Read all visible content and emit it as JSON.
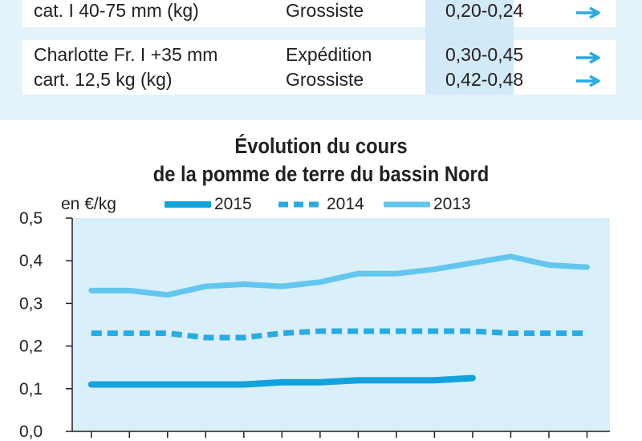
{
  "price_table": {
    "rows": [
      {
        "product": "cat. I 40-75 mm (kg)",
        "stage": "Grossiste",
        "price": "0,20-0,24",
        "trend_icon": "arrow-right-icon"
      },
      {
        "product": "Charlotte Fr. I +35 mm",
        "stage": "Expédition",
        "price": "0,30-0,45",
        "trend_icon": "arrow-right-icon"
      },
      {
        "product": "cart. 12,5 kg (kg)",
        "stage": "Grossiste",
        "price": "0,42-0,48",
        "trend_icon": "arrow-right-icon"
      }
    ],
    "arrow_color": "#29abe2"
  },
  "chart_data": {
    "type": "line",
    "title": "Évolution du cours",
    "subtitle": "de la pomme de terre du bassin Nord",
    "ylabel": "en €/kg",
    "xlabel": "",
    "ylim": [
      0,
      0.5
    ],
    "yticks": [
      "0,0",
      "0,1",
      "0,2",
      "0,3",
      "0,4",
      "0,5"
    ],
    "x": [
      1,
      2,
      3,
      4,
      5,
      6,
      7,
      8,
      9,
      10,
      11,
      12,
      13,
      14
    ],
    "xlim": [
      0.5,
      14.6
    ],
    "legend_placement": "top",
    "series": [
      {
        "name": "2015",
        "style": "solid-thick",
        "color": "#12a3dd",
        "values": [
          0.11,
          0.11,
          0.11,
          0.11,
          0.11,
          0.115,
          0.115,
          0.12,
          0.12,
          0.12,
          0.125,
          null,
          null,
          null
        ]
      },
      {
        "name": "2014",
        "style": "dashed",
        "color": "#29abe2",
        "values": [
          0.23,
          0.23,
          0.23,
          0.22,
          0.22,
          0.23,
          0.235,
          0.235,
          0.235,
          0.235,
          0.235,
          0.23,
          0.23,
          0.23
        ]
      },
      {
        "name": "2013",
        "style": "solid",
        "color": "#63c6ee",
        "values": [
          0.33,
          0.33,
          0.32,
          0.34,
          0.345,
          0.34,
          0.35,
          0.37,
          0.37,
          0.38,
          0.395,
          0.41,
          0.39,
          0.385
        ]
      }
    ],
    "colors": {
      "plot_background": "#d9eff9",
      "axis": "#231f20"
    }
  }
}
